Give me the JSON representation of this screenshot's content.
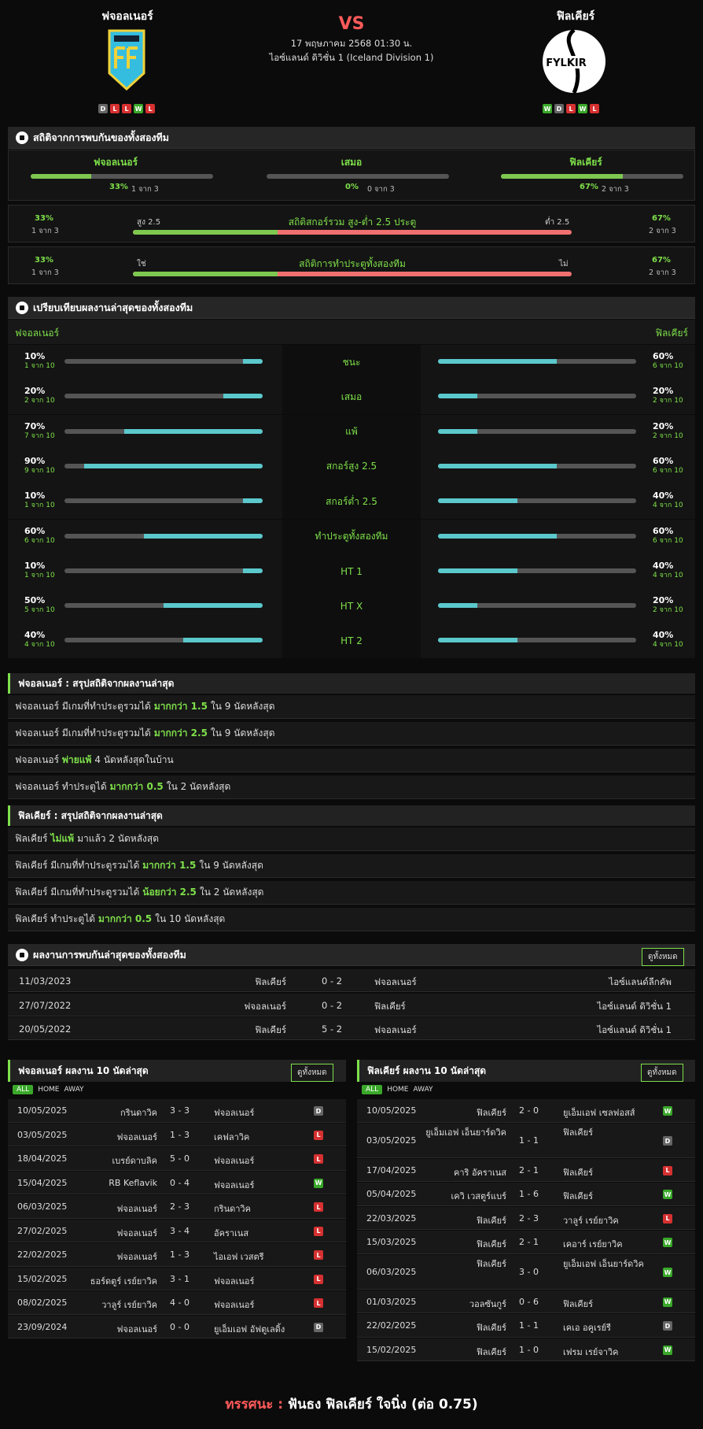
{
  "header": {
    "home_team": "ฟจอลเนอร์",
    "away_team": "ฟิลเคียร์",
    "vs": "VS",
    "date": "17 พฤษภาคม 2568 01:30 น.",
    "league": "ไอซ์แลนด์ ดิวิชั่น 1 (Iceland Division 1)",
    "home_form": [
      "D",
      "L",
      "L",
      "W",
      "L"
    ],
    "away_form": [
      "W",
      "D",
      "L",
      "W",
      "L"
    ],
    "away_logo_text": "FYLKIR"
  },
  "h2h": {
    "title": "สถิติจากการพบกันของทั้งสองทีม",
    "cols": [
      {
        "label": "ฟจอลเนอร์",
        "pct": "33%",
        "sub": "1 จาก 3",
        "fill": 0.33
      },
      {
        "label": "เสมอ",
        "pct": "0%",
        "sub": "0 จาก 3",
        "fill": 0
      },
      {
        "label": "ฟิลเคียร์",
        "pct": "67%",
        "sub": "2 จาก 3",
        "fill": 0.67
      }
    ],
    "ou": {
      "title": "สถิติสกอร์รวม สูง-ต่ำ 2.5 ประตู",
      "left_label": "สูง 2.5",
      "right_label": "ต่ำ 2.5",
      "left_pct": "33%",
      "left_sub": "1 จาก 3",
      "right_pct": "67%",
      "right_sub": "2 จาก 3",
      "fill": 0.33
    },
    "btts": {
      "title": "สถิติการทำประตูทั้งสองทีม",
      "left_label": "ใช่",
      "right_label": "ไม่",
      "left_pct": "33%",
      "left_sub": "1 จาก 3",
      "right_pct": "67%",
      "right_sub": "2 จาก 3",
      "fill": 0.33
    }
  },
  "compare": {
    "title": "เปรียบเทียบผลงานล่าสุดของทั้งสองทีม",
    "home": "ฟจอลเนอร์",
    "away": "ฟิลเคียร์",
    "rows": [
      {
        "label": "ชนะ",
        "hp": "10%",
        "hs": "1 จาก 10",
        "hf": 0.1,
        "ap": "60%",
        "as": "6 จาก 10",
        "af": 0.6
      },
      {
        "label": "เสมอ",
        "hp": "20%",
        "hs": "2 จาก 10",
        "hf": 0.2,
        "ap": "20%",
        "as": "2 จาก 10",
        "af": 0.2
      },
      {
        "label": "แพ้",
        "hp": "70%",
        "hs": "7 จาก 10",
        "hf": 0.7,
        "ap": "20%",
        "as": "2 จาก 10",
        "af": 0.2
      },
      {
        "label": "สกอร์สูง 2.5",
        "hp": "90%",
        "hs": "9 จาก 10",
        "hf": 0.9,
        "ap": "60%",
        "as": "6 จาก 10",
        "af": 0.6
      },
      {
        "label": "สกอร์ต่ำ 2.5",
        "hp": "10%",
        "hs": "1 จาก 10",
        "hf": 0.1,
        "ap": "40%",
        "as": "4 จาก 10",
        "af": 0.4
      },
      {
        "label": "ทำประตูทั้งสองทีม",
        "hp": "60%",
        "hs": "6 จาก 10",
        "hf": 0.6,
        "ap": "60%",
        "as": "6 จาก 10",
        "af": 0.6
      },
      {
        "label": "HT 1",
        "hp": "10%",
        "hs": "1 จาก 10",
        "hf": 0.1,
        "ap": "40%",
        "as": "4 จาก 10",
        "af": 0.4
      },
      {
        "label": "HT X",
        "hp": "50%",
        "hs": "5 จาก 10",
        "hf": 0.5,
        "ap": "20%",
        "as": "2 จาก 10",
        "af": 0.2
      },
      {
        "label": "HT 2",
        "hp": "40%",
        "hs": "4 จาก 10",
        "hf": 0.4,
        "ap": "40%",
        "as": "4 จาก 10",
        "af": 0.4
      }
    ]
  },
  "home_summary": {
    "title": "ฟจอลเนอร์ : สรุปสถิติจากผลงานล่าสุด",
    "lines": [
      {
        "a": "ฟจอลเนอร์ มีเกมที่ทำประตูรวมได้",
        "b": "มากกว่า 1.5",
        "c": "ใน 9 นัดหลังสุด"
      },
      {
        "a": "ฟจอลเนอร์ มีเกมที่ทำประตูรวมได้",
        "b": "มากกว่า 2.5",
        "c": "ใน 9 นัดหลังสุด"
      },
      {
        "a": "ฟจอลเนอร์",
        "b": "พ่ายแพ้",
        "c": "4 นัดหลังสุดในบ้าน"
      },
      {
        "a": "ฟจอลเนอร์ ทำประตูได้",
        "b": "มากกว่า 0.5",
        "c": "ใน 2 นัดหลังสุด"
      }
    ]
  },
  "away_summary": {
    "title": "ฟิลเคียร์ : สรุปสถิติจากผลงานล่าสุด",
    "lines": [
      {
        "a": "ฟิลเคียร์",
        "b": "ไม่แพ้",
        "c": "มาแล้ว 2 นัดหลังสุด"
      },
      {
        "a": "ฟิลเคียร์ มีเกมที่ทำประตูรวมได้",
        "b": "มากกว่า 1.5",
        "c": "ใน 9 นัดหลังสุด"
      },
      {
        "a": "ฟิลเคียร์ มีเกมที่ทำประตูรวมได้",
        "b": "น้อยกว่า 2.5",
        "c": "ใน 2 นัดหลังสุด"
      },
      {
        "a": "ฟิลเคียร์ ทำประตูได้",
        "b": "มากกว่า 0.5",
        "c": "ใน 10 นัดหลังสุด"
      }
    ]
  },
  "h2h_results": {
    "title": "ผลงานการพบกันล่าสุดของทั้งสองทีม",
    "button": "ดูทั้งหมด",
    "rows": [
      {
        "date": "11/03/2023",
        "home": "ฟิลเคียร์",
        "score": "0 - 2",
        "away": "ฟจอลเนอร์",
        "comp": "ไอซ์แลนด์ลีกคัพ"
      },
      {
        "date": "27/07/2022",
        "home": "ฟจอลเนอร์",
        "score": "0 - 2",
        "away": "ฟิลเคียร์",
        "comp": "ไอซ์แลนด์ ดิวิชั่น 1"
      },
      {
        "date": "20/05/2022",
        "home": "ฟิลเคียร์",
        "score": "5 - 2",
        "away": "ฟจอลเนอร์",
        "comp": "ไอซ์แลนด์ ดิวิชั่น 1"
      }
    ]
  },
  "home_last10": {
    "title": "ฟจอลเนอร์ ผลงาน 10 นัดล่าสุด",
    "button": "ดูทั้งหมด",
    "tabs": [
      "ALL",
      "HOME",
      "AWAY"
    ],
    "rows": [
      {
        "date": "10/05/2025",
        "home": "กรินดาวิค",
        "score": "3 - 3",
        "away": "ฟจอลเนอร์",
        "r": "D"
      },
      {
        "date": "03/05/2025",
        "home": "ฟจอลเนอร์",
        "score": "1 - 3",
        "away": "เคฟลาวิค",
        "r": "L"
      },
      {
        "date": "18/04/2025",
        "home": "เบรย์ดาบลิค",
        "score": "5 - 0",
        "away": "ฟจอลเนอร์",
        "r": "L"
      },
      {
        "date": "15/04/2025",
        "home": "RB Keflavik",
        "score": "0 - 4",
        "away": "ฟจอลเนอร์",
        "r": "W"
      },
      {
        "date": "06/03/2025",
        "home": "ฟจอลเนอร์",
        "score": "2 - 3",
        "away": "กรินดาวิค",
        "r": "L"
      },
      {
        "date": "27/02/2025",
        "home": "ฟจอลเนอร์",
        "score": "3 - 4",
        "away": "อัคราเนส",
        "r": "L"
      },
      {
        "date": "22/02/2025",
        "home": "ฟจอลเนอร์",
        "score": "1 - 3",
        "away": "ไอเอฟ เวสตรี",
        "r": "L"
      },
      {
        "date": "15/02/2025",
        "home": "ธอร์ดตูร์ เรย์ยาวิค",
        "score": "3 - 1",
        "away": "ฟจอลเนอร์",
        "r": "L"
      },
      {
        "date": "08/02/2025",
        "home": "วาลูร์ เรย์ยาวิค",
        "score": "4 - 0",
        "away": "ฟจอลเนอร์",
        "r": "L"
      },
      {
        "date": "23/09/2024",
        "home": "ฟจอลเนอร์",
        "score": "0 - 0",
        "away": "ยูเอ็มเอฟ อัฟตูเลดิ้ง",
        "r": "D"
      }
    ]
  },
  "away_last10": {
    "title": "ฟิลเคียร์ ผลงาน 10 นัดล่าสุด",
    "button": "ดูทั้งหมด",
    "tabs": [
      "ALL",
      "HOME",
      "AWAY"
    ],
    "rows": [
      {
        "date": "10/05/2025",
        "home": "ฟิลเคียร์",
        "score": "2 - 0",
        "away": "ยูเอ็มเอฟ เซลฟอสส์",
        "r": "W"
      },
      {
        "date": "03/05/2025",
        "home": "ยูเอ็มเอฟ เอ็นยาร์ดวิค",
        "score": "1 - 1",
        "away": "ฟิลเคียร์",
        "r": "D"
      },
      {
        "date": "17/04/2025",
        "home": "คาริ อัคราเนส",
        "score": "2 - 1",
        "away": "ฟิลเคียร์",
        "r": "L"
      },
      {
        "date": "05/04/2025",
        "home": "เควิ เวสตูร์แบร์",
        "score": "1 - 6",
        "away": "ฟิลเคียร์",
        "r": "W"
      },
      {
        "date": "22/03/2025",
        "home": "ฟิลเคียร์",
        "score": "2 - 3",
        "away": "วาลูร์ เรย์ยาวิค",
        "r": "L"
      },
      {
        "date": "15/03/2025",
        "home": "ฟิลเคียร์",
        "score": "2 - 1",
        "away": "เคอาร์ เรย์ยาวิค",
        "r": "W"
      },
      {
        "date": "06/03/2025",
        "home": "ฟิลเคียร์",
        "score": "3 - 0",
        "away": "ยูเอ็มเอฟ เอ็นยาร์ดวิค",
        "r": "W"
      },
      {
        "date": "01/03/2025",
        "home": "วอลซันกูร์",
        "score": "0 - 6",
        "away": "ฟิลเคียร์",
        "r": "W"
      },
      {
        "date": "22/02/2025",
        "home": "ฟิลเคียร์",
        "score": "1 - 1",
        "away": "เคเอ อคูเรย์รี",
        "r": "D"
      },
      {
        "date": "15/02/2025",
        "home": "ฟิลเคียร์",
        "score": "1 - 0",
        "away": "เฟรม เรย์จาวิค",
        "r": "W"
      }
    ]
  },
  "verdict": {
    "label": "ทรรศนะ :",
    "text": "ฟันธง ฟิลเคียร์ ใจนิ่ง (ต่อ 0.75)"
  },
  "colors": {
    "green": "#7ee04a",
    "red": "#f07070",
    "teal": "#5bc8cc",
    "bar_bg": "#555555"
  }
}
